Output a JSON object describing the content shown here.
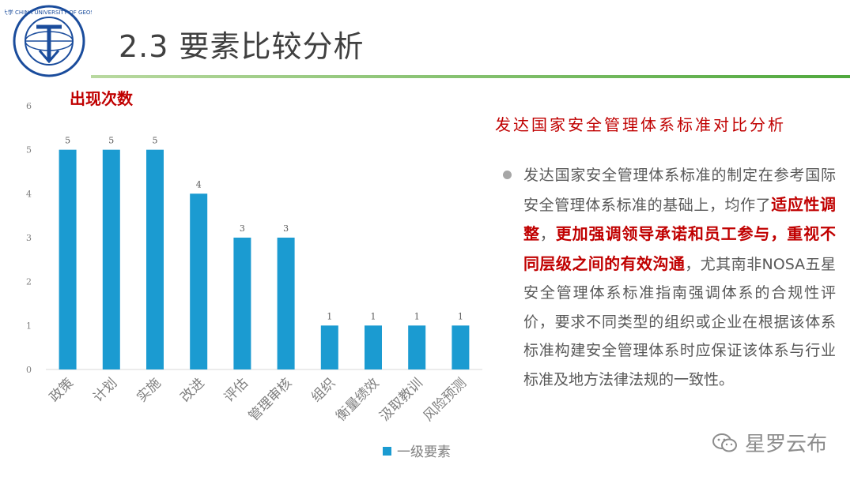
{
  "header": {
    "title": "2.3 要素比较分析",
    "logo_text": "中国地质大学 CHINA UNIVERSITY OF GEOSCIENCES"
  },
  "chart_data": {
    "type": "bar",
    "title": "出现次数",
    "categories": [
      "政策",
      "计划",
      "实施",
      "改进",
      "评估",
      "管理审核",
      "组织",
      "衡量绩效",
      "汲取教训",
      "风险预测"
    ],
    "series": [
      {
        "name": "一级要素",
        "values": [
          5,
          5,
          5,
          4,
          3,
          3,
          1,
          1,
          1,
          1
        ]
      }
    ],
    "ylim": [
      0,
      6
    ],
    "yticks": [
      0,
      1,
      2,
      3,
      4,
      5,
      6
    ],
    "data_labels": true,
    "legend": "bottom",
    "grid": false,
    "bar_color": "#1b9bd1"
  },
  "panel": {
    "heading": "发达国家安全管理体系标准对比分析",
    "paragraph": [
      {
        "text": "发达国家安全管理体系标准的制定在参考国际安全管理体系标准的基础上，均作了",
        "hl": false
      },
      {
        "text": "适应性调整",
        "hl": true
      },
      {
        "text": "，",
        "hl": false
      },
      {
        "text": "更加强调领导承诺和员工参与，重视不同层级之间的有效沟通",
        "hl": true
      },
      {
        "text": "，尤其南非NOSA五星安全管理体系标准指南强调体系的合规性评价，要求不同类型的组织或企业在根据该体系标准构建安全管理体系时应保证该体系与行业标准及地方法律法规的一致性。",
        "hl": false
      }
    ]
  },
  "watermark": {
    "text": "星罗云布"
  },
  "colors": {
    "accent_red": "#c00000",
    "bar": "#1b9bd1",
    "rule": "#4fa83d",
    "text_gray": "#595959"
  }
}
